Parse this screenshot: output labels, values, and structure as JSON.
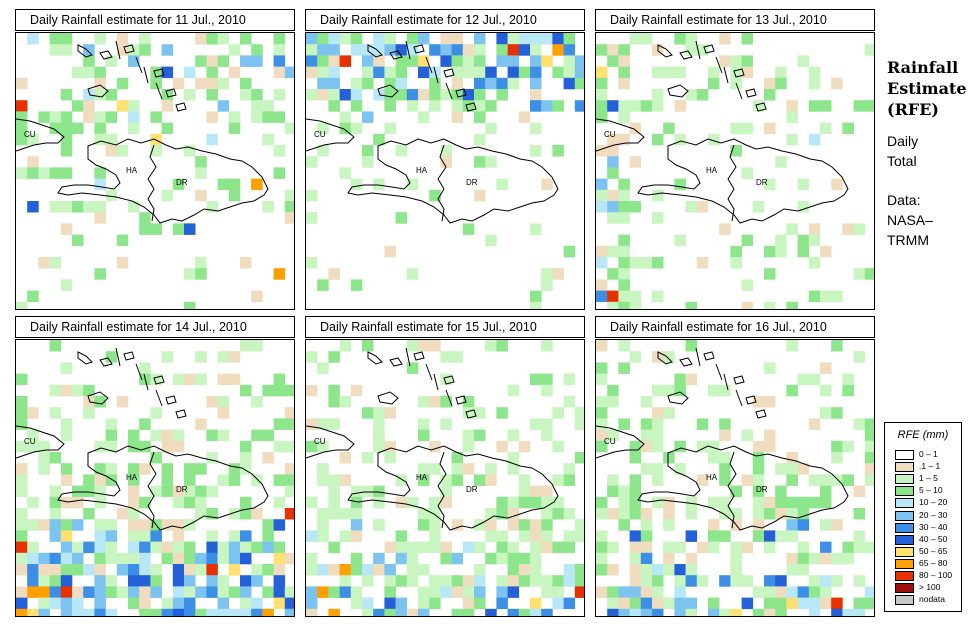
{
  "side_panel": {
    "title_lines": [
      "Rainfall",
      "Estimate",
      "(RFE)"
    ],
    "subtitle_lines": [
      "Daily",
      "Total"
    ],
    "source_lines": [
      "Data:",
      "NASA–",
      "TRMM"
    ]
  },
  "map_labels": {
    "cuba": "CU",
    "haiti": "HA",
    "dominican_republic": "DR"
  },
  "panels": [
    {
      "title": "Daily Rainfall estimate for  11 Jul., 2010",
      "seed": 11,
      "intensity": 0.45,
      "bias": "north"
    },
    {
      "title": "Daily Rainfall estimate for  12 Jul., 2010",
      "seed": 12,
      "intensity": 0.75,
      "bias": "north-heavy"
    },
    {
      "title": "Daily Rainfall estimate for  13 Jul., 2010",
      "seed": 13,
      "intensity": 0.35,
      "bias": "scatter"
    },
    {
      "title": "Daily Rainfall estimate for  14 Jul., 2010",
      "seed": 14,
      "intensity": 0.85,
      "bias": "south-heavy"
    },
    {
      "title": "Daily Rainfall estimate for  15 Jul., 2010",
      "seed": 15,
      "intensity": 0.7,
      "bias": "south"
    },
    {
      "title": "Daily Rainfall estimate for  16 Jul., 2010",
      "seed": 16,
      "intensity": 0.7,
      "bias": "south"
    }
  ],
  "legend": {
    "title": "RFE (mm)",
    "items": [
      {
        "label": "0 – 1",
        "color": "#ffffff"
      },
      {
        "label": ".1 – 1",
        "color": "#f0dcbe"
      },
      {
        "label": "1 – 5",
        "color": "#c8f5c0"
      },
      {
        "label": "5 – 10",
        "color": "#8ee68c"
      },
      {
        "label": "10 – 20",
        "color": "#b8e8f8"
      },
      {
        "label": "20 – 30",
        "color": "#7cc3f0"
      },
      {
        "label": "30 – 40",
        "color": "#3c8fe4"
      },
      {
        "label": "40 – 50",
        "color": "#2460d8"
      },
      {
        "label": "50 – 65",
        "color": "#ffe070"
      },
      {
        "label": "65 – 80",
        "color": "#ffa000"
      },
      {
        "label": "80 – 100",
        "color": "#e83000"
      },
      {
        "label": "> 100",
        "color": "#a01010"
      },
      {
        "label": "nodata",
        "color": "#c8c8c8"
      }
    ]
  }
}
